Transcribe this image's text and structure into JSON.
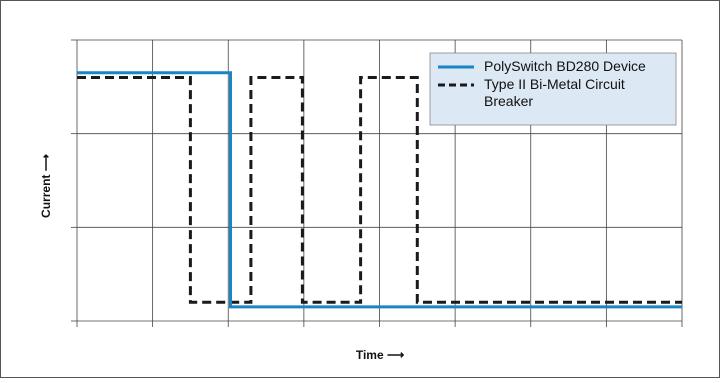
{
  "chart_data": {
    "type": "line",
    "xlabel": "Time ⟶",
    "ylabel": "Current ⟶",
    "xlim": [
      0,
      8
    ],
    "ylim": [
      0,
      3
    ],
    "grid": true,
    "legend_position": "top-right",
    "series": [
      {
        "name": "PolySwitch BD280 Device",
        "color": "#1b84c4",
        "style": "solid",
        "points": [
          [
            0,
            2.65
          ],
          [
            2.03,
            2.65
          ],
          [
            2.03,
            0.15
          ],
          [
            8,
            0.15
          ]
        ]
      },
      {
        "name": "Type II Bi-Metal Circuit Breaker",
        "color": "#1a1a1a",
        "style": "dashed",
        "points": [
          [
            0,
            2.6
          ],
          [
            1.5,
            2.6
          ],
          [
            1.5,
            0.2
          ],
          [
            2.3,
            0.2
          ],
          [
            2.3,
            2.6
          ],
          [
            2.98,
            2.6
          ],
          [
            2.98,
            0.2
          ],
          [
            3.75,
            0.2
          ],
          [
            3.75,
            2.6
          ],
          [
            4.5,
            2.6
          ],
          [
            4.5,
            0.2
          ],
          [
            8,
            0.2
          ]
        ]
      }
    ]
  }
}
